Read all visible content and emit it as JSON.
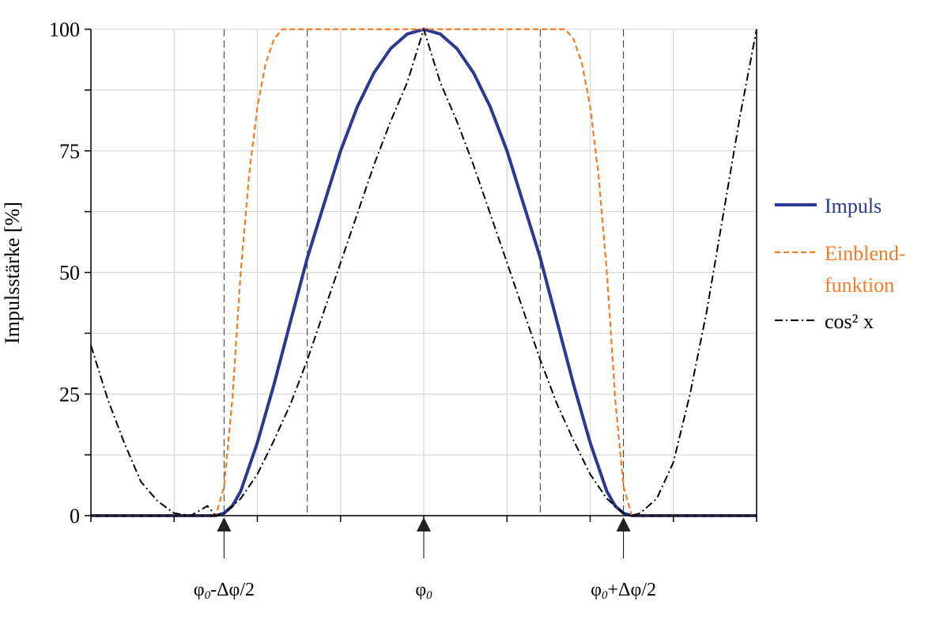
{
  "chart_data": {
    "type": "line",
    "ylabel": "Impulsstärke [%]",
    "ylim": [
      0,
      100
    ],
    "yticks": [
      0,
      25,
      50,
      75,
      100
    ],
    "xlim": [
      -4,
      4
    ],
    "grid": true,
    "legend_position": "right",
    "colors": {
      "impuls": "#2b3990",
      "einblend": "#f07d28",
      "cos2": "#000000"
    },
    "series": [
      {
        "name": "Impuls",
        "style": "solid",
        "x": [
          -4,
          -2.5,
          -2.4,
          -2.3,
          -2.2,
          -2.1,
          -2.0,
          -1.8,
          -1.6,
          -1.4,
          -1.2,
          -1.0,
          -0.8,
          -0.6,
          -0.4,
          -0.2,
          0,
          0.2,
          0.4,
          0.6,
          0.8,
          1.0,
          1.2,
          1.4,
          1.6,
          1.8,
          2.0,
          2.1,
          2.2,
          2.3,
          2.4,
          2.5,
          4
        ],
        "y": [
          0,
          0,
          0.5,
          2,
          5,
          10,
          15,
          27,
          40,
          53,
          64,
          75,
          84,
          91,
          96,
          99,
          100,
          99,
          96,
          91,
          84,
          75,
          64,
          53,
          40,
          27,
          15,
          10,
          5,
          2,
          0.5,
          0,
          0
        ]
      },
      {
        "name": "Einblend-funktion",
        "style": "dashed",
        "x": [
          -4,
          -2.5,
          -2.4,
          -2.3,
          -2.2,
          -2.1,
          -2.0,
          -1.9,
          -1.8,
          -1.7,
          -1.6,
          -1.5,
          -1.4,
          1.4,
          1.5,
          1.6,
          1.7,
          1.8,
          1.9,
          2.0,
          2.1,
          2.2,
          2.3,
          2.4,
          2.5,
          4
        ],
        "y": [
          0,
          0,
          6,
          24,
          50,
          70,
          84,
          93,
          98,
          100,
          100,
          100,
          100,
          100,
          100,
          100,
          100,
          98,
          93,
          84,
          70,
          50,
          24,
          6,
          0,
          0
        ]
      },
      {
        "name": "cos² x",
        "style": "dashdot",
        "x": [
          -4.0,
          -3.8,
          -3.6,
          -3.4,
          -3.2,
          -3.0,
          -2.8,
          -2.6,
          -2.5,
          -2.4,
          -2.2,
          -2.0,
          -1.8,
          -1.6,
          -1.4,
          -1.2,
          -1.0,
          -0.8,
          -0.6,
          -0.4,
          -0.2,
          0,
          0.2,
          0.4,
          0.6,
          0.8,
          1.0,
          1.2,
          1.4,
          1.6,
          1.8,
          2.0,
          2.2,
          2.4,
          2.5,
          2.6,
          2.8,
          3.0,
          3.2,
          3.4,
          3.6,
          3.8,
          4.0
        ],
        "y": [
          35,
          24,
          15,
          7,
          3,
          0.5,
          0,
          2,
          0,
          0.5,
          3.5,
          8.5,
          15.5,
          23,
          32,
          42,
          52,
          62,
          72,
          81,
          89,
          100,
          89,
          81,
          72,
          62,
          52,
          42,
          32,
          23,
          15.5,
          8.5,
          3.5,
          0.5,
          0,
          0.5,
          3.5,
          11,
          25,
          42,
          62,
          82,
          100
        ]
      }
    ],
    "vlines": [
      -2.4,
      -1.4,
      1.4,
      2.4
    ],
    "markers": [
      {
        "x": -2.4,
        "label_main": "φ",
        "label_sub": "0",
        "label_rest": "-Δφ/2"
      },
      {
        "x": 0,
        "label_main": "φ",
        "label_sub": "0",
        "label_rest": ""
      },
      {
        "x": 2.4,
        "label_main": "φ",
        "label_sub": "0",
        "label_rest": "+Δφ/2"
      }
    ],
    "legend": [
      {
        "lines": [
          "Impuls"
        ],
        "series": 0
      },
      {
        "lines": [
          "Einblend-",
          "funktion"
        ],
        "series": 1
      },
      {
        "lines": [
          "cos² x"
        ],
        "series": 2
      }
    ]
  }
}
